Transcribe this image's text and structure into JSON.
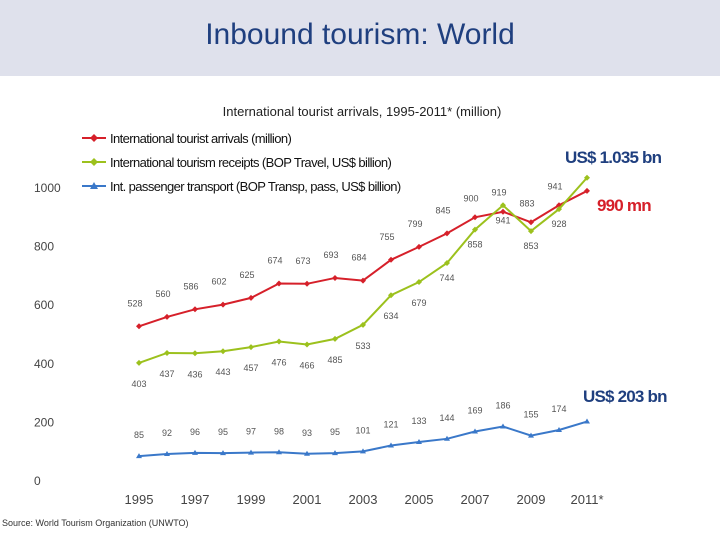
{
  "slide": {
    "title": "Inbound tourism: World",
    "source": "Source: World Tourism Organization (UNWTO)"
  },
  "colors": {
    "arrivals": "#d6202a",
    "receipts": "#9cc11d",
    "transport": "#3a78c9",
    "header_bg": "#dfe1ec",
    "title": "#1f3f7f"
  },
  "chart_data": {
    "type": "line",
    "title": "International tourist arrivals, 1995-2011* (million)",
    "x": [
      "1995",
      "1996",
      "1997",
      "1998",
      "1999",
      "2000",
      "2001",
      "2002",
      "2003",
      "2004",
      "2005",
      "2006",
      "2007",
      "2008",
      "2009",
      "2010",
      "2011*"
    ],
    "x_tick_labels": [
      "1995",
      "1997",
      "1999",
      "2001",
      "2003",
      "2005",
      "2007",
      "2009",
      "2011*"
    ],
    "y_tick_labels": [
      "0",
      "200",
      "400",
      "600",
      "800",
      "1000"
    ],
    "ylim": [
      0,
      1000
    ],
    "grid": false,
    "legend_position": "top-left",
    "series": [
      {
        "name": "International tourist arrivals (million)",
        "values": [
          528,
          560,
          586,
          602,
          625,
          674,
          673,
          693,
          684,
          755,
          799,
          845,
          900,
          919,
          883,
          941,
          990
        ],
        "value_labels": [
          "528",
          "560",
          "586",
          "602",
          "625",
          "674",
          "673",
          "693",
          "684",
          "755",
          "799",
          "845",
          "900",
          "919",
          "883",
          "941",
          ""
        ]
      },
      {
        "name": "International tourism receipts (BOP Travel, US$ billion)",
        "values": [
          403,
          437,
          436,
          443,
          457,
          476,
          466,
          485,
          533,
          634,
          679,
          744,
          858,
          941,
          853,
          928,
          1035
        ],
        "value_labels": [
          "403",
          "437",
          "436",
          "443",
          "457",
          "476",
          "466",
          "485",
          "533",
          "634",
          "679",
          "744",
          "858",
          "941",
          "853",
          "928",
          ""
        ]
      },
      {
        "name": "Int. passenger transport (BOP Transp, pass, US$ billion)",
        "values": [
          85,
          92,
          96,
          95,
          97,
          98,
          93,
          95,
          101,
          121,
          133,
          144,
          169,
          186,
          155,
          174,
          203
        ],
        "value_labels": [
          "85",
          "92",
          "96",
          "95",
          "97",
          "98",
          "93",
          "95",
          "101",
          "121",
          "133",
          "144",
          "169",
          "186",
          "155",
          "174",
          ""
        ]
      }
    ],
    "annotations": [
      {
        "text": "US$ 1.035 bn",
        "color": "#1f3f7f"
      },
      {
        "text": "990 mn",
        "color": "#d6202a"
      },
      {
        "text": "US$ 203 bn",
        "color": "#1f3f7f"
      }
    ]
  }
}
